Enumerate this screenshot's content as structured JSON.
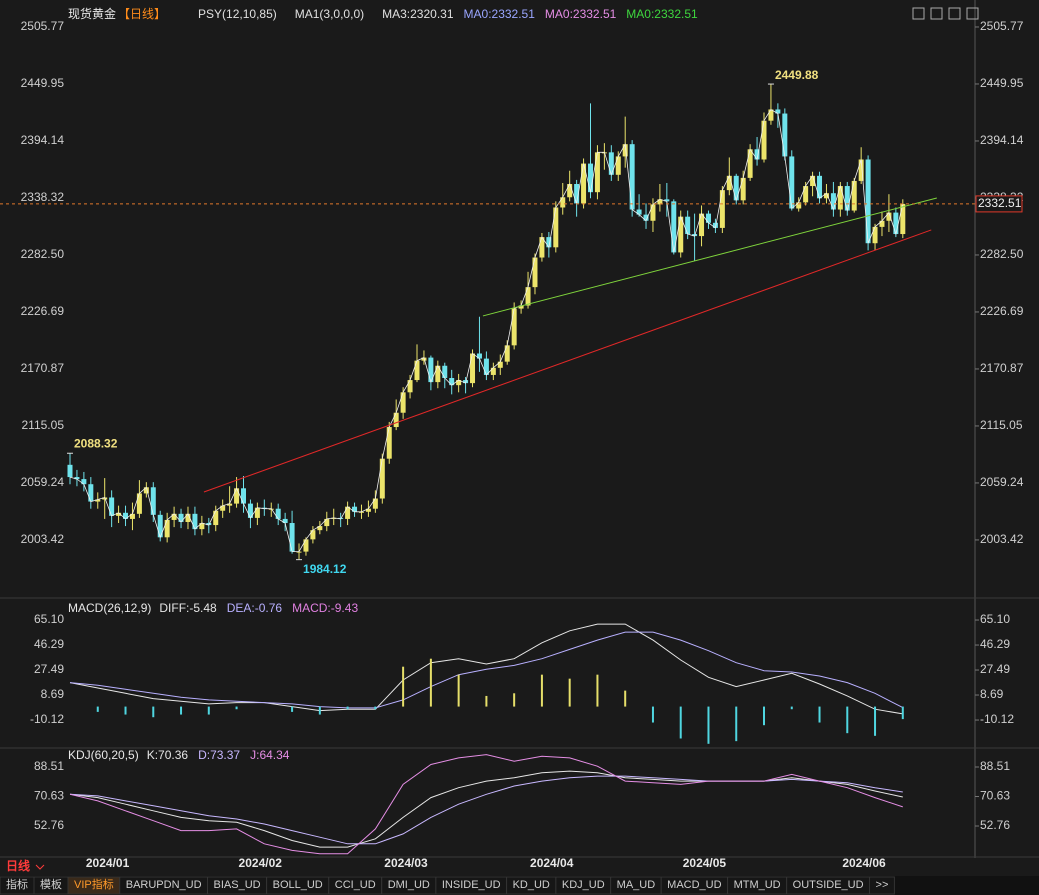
{
  "chart_data": [
    {
      "type": "candlestick",
      "title": "现货黄金",
      "subtitle": "【日线】",
      "legend": [
        {
          "name": "PSY(12,10,85)",
          "color": "#e0e0e0"
        },
        {
          "name": "MA1(3,0,0,0)",
          "color": "#e0e0e0"
        },
        {
          "name": "MA3:2320.31",
          "color": "#e0e0e0"
        },
        {
          "name": "MA0:2332.51",
          "color": "#9aa6ff"
        },
        {
          "name": "MA0:2332.51",
          "color": "#e58ee5"
        },
        {
          "name": "MA0:2332.51",
          "color": "#3ed63e"
        }
      ],
      "categories": [
        null,
        null,
        "2024/01",
        null,
        null,
        null,
        null,
        null,
        null,
        null,
        null,
        null,
        null,
        null,
        null,
        null,
        null,
        null,
        null,
        null,
        null,
        null,
        null,
        null,
        "2024/02",
        null,
        null,
        null,
        null,
        null,
        null,
        null,
        null,
        null,
        null,
        null,
        null,
        null,
        null,
        null,
        null,
        null,
        null,
        null,
        null,
        "2024/03",
        null,
        null,
        null,
        null,
        null,
        null,
        null,
        null,
        null,
        null,
        null,
        null,
        null,
        null,
        null,
        null,
        null,
        null,
        null,
        null,
        "2024/04",
        null,
        null,
        null,
        null,
        null,
        null,
        null,
        null,
        null,
        null,
        null,
        null,
        null,
        null,
        null,
        null,
        null,
        null,
        null,
        null,
        null,
        "2024/05",
        null,
        null,
        null,
        null,
        null,
        null,
        null,
        null,
        null,
        null,
        null,
        null,
        null,
        null,
        null,
        null,
        null,
        null,
        null,
        null,
        null,
        null,
        "2024/06",
        null,
        null,
        null,
        null,
        null,
        null,
        null,
        null,
        null
      ],
      "open": [
        2077,
        2065,
        2063,
        2058,
        2041,
        2043,
        2045,
        2027,
        2030,
        2024,
        2029,
        2049,
        2055,
        2028,
        2006,
        2023,
        2029,
        2021,
        2029,
        2014,
        2020,
        2018,
        2032,
        2037,
        2039,
        2054,
        2039,
        2025,
        2035,
        2034,
        2034,
        2024,
        2020,
        1992,
        1992,
        2004,
        2013,
        2017,
        2024,
        2025,
        2024,
        2036,
        2031,
        2031,
        2034,
        2044,
        2083,
        2114,
        2128,
        2148,
        2160,
        2179,
        2182,
        2158,
        2174,
        2162,
        2155,
        2160,
        2157,
        2186,
        2181,
        2165,
        2172,
        2178,
        2194,
        2230,
        2233,
        2251,
        2280,
        2300,
        2290,
        2329,
        2339,
        2352,
        2333,
        2372,
        2344,
        2383,
        2383,
        2361,
        2379,
        2391,
        2327,
        2322,
        2316,
        2332,
        2337,
        2335,
        2285,
        2320,
        2303,
        2301,
        2323,
        2314,
        2309,
        2346,
        2360,
        2336,
        2358,
        2386,
        2376,
        2414,
        2425,
        2421,
        2379,
        2328,
        2334,
        2350,
        2360,
        2338,
        2343,
        2327,
        2350,
        2326,
        2355,
        2376,
        2294,
        2310,
        2316,
        2324,
        2303
      ],
      "high": [
        2088.32,
        2072,
        2070,
        2065,
        2050,
        2064,
        2052,
        2037,
        2037,
        2040,
        2062,
        2060,
        2060,
        2032,
        2030,
        2036,
        2034,
        2036,
        2036,
        2027,
        2025,
        2037,
        2043,
        2056,
        2065,
        2066,
        2043,
        2040,
        2043,
        2040,
        2039,
        2030,
        2032,
        2000,
        2006,
        2017,
        2022,
        2031,
        2034,
        2030,
        2041,
        2040,
        2038,
        2042,
        2052,
        2088,
        2119,
        2141,
        2153,
        2165,
        2195,
        2189,
        2184,
        2179,
        2177,
        2170,
        2166,
        2163,
        2190,
        2222,
        2188,
        2177,
        2185,
        2199,
        2236,
        2238,
        2266,
        2284,
        2304,
        2305,
        2335,
        2353,
        2365,
        2356,
        2377,
        2431,
        2390,
        2392,
        2390,
        2384,
        2418,
        2395,
        2342,
        2333,
        2338,
        2352,
        2353,
        2337,
        2326,
        2326,
        2323,
        2331,
        2326,
        2318,
        2350,
        2378,
        2362,
        2365,
        2391,
        2398,
        2422,
        2449.88,
        2431,
        2426,
        2385,
        2339,
        2354,
        2364,
        2364,
        2352,
        2354,
        2354,
        2354,
        2358,
        2388,
        2380,
        2313,
        2325,
        2342,
        2329,
        2337
      ],
      "low": [
        2058,
        2056,
        2051,
        2034,
        2034,
        2024,
        2016,
        2020,
        2017,
        2013,
        2025,
        2045,
        2021,
        2002,
        2001,
        2016,
        2015,
        2014,
        2008,
        2008,
        2010,
        2012,
        2025,
        2030,
        2035,
        2030,
        2015,
        2018,
        2027,
        2026,
        2018,
        2012,
        1990,
        1984.12,
        1988,
        2000,
        2009,
        2012,
        2018,
        2016,
        2018,
        2026,
        2024,
        2026,
        2030,
        2039,
        2078,
        2111,
        2122,
        2142,
        2158,
        2175,
        2150,
        2152,
        2152,
        2146,
        2148,
        2147,
        2153,
        2168,
        2160,
        2160,
        2165,
        2175,
        2190,
        2225,
        2230,
        2244,
        2276,
        2280,
        2285,
        2322,
        2335,
        2320,
        2328,
        2338,
        2337,
        2366,
        2355,
        2355,
        2368,
        2320,
        2320,
        2308,
        2305,
        2325,
        2320,
        2283,
        2280,
        2298,
        2277,
        2291,
        2308,
        2304,
        2304,
        2341,
        2332,
        2332,
        2355,
        2370,
        2373,
        2410,
        2407,
        2375,
        2326,
        2325,
        2331,
        2340,
        2333,
        2333,
        2320,
        2320,
        2321,
        2324,
        2352,
        2287,
        2287,
        2301,
        2305,
        2300,
        2299
      ],
      "close": [
        2065,
        2063,
        2058,
        2041,
        2043,
        2045,
        2027,
        2030,
        2024,
        2029,
        2049,
        2055,
        2028,
        2006,
        2023,
        2029,
        2021,
        2029,
        2014,
        2020,
        2018,
        2032,
        2037,
        2039,
        2054,
        2039,
        2025,
        2035,
        2034,
        2034,
        2024,
        2020,
        1992,
        1992,
        2004,
        2013,
        2017,
        2024,
        2025,
        2024,
        2036,
        2031,
        2031,
        2034,
        2044,
        2083,
        2114,
        2128,
        2148,
        2160,
        2179,
        2182,
        2158,
        2174,
        2162,
        2155,
        2160,
        2157,
        2186,
        2181,
        2165,
        2172,
        2178,
        2194,
        2230,
        2233,
        2251,
        2280,
        2300,
        2290,
        2329,
        2339,
        2352,
        2333,
        2372,
        2344,
        2383,
        2383,
        2361,
        2379,
        2391,
        2327,
        2322,
        2316,
        2332,
        2337,
        2335,
        2285,
        2320,
        2303,
        2301,
        2323,
        2314,
        2309,
        2346,
        2360,
        2336,
        2358,
        2386,
        2376,
        2414,
        2425,
        2421,
        2379,
        2328,
        2334,
        2350,
        2360,
        2338,
        2343,
        2327,
        2350,
        2326,
        2355,
        2376,
        2294,
        2310,
        2316,
        2324,
        2303,
        2332.51
      ],
      "up_color": "#ece46a",
      "down_color": "#6fe3ec",
      "line_color": "#f0f0f0",
      "last_price_color": "#e0782a",
      "trendlines": [
        {
          "color": "#7fd43c",
          "x": [
            59.5,
            124.9
          ],
          "y": [
            2222.8,
            2338.3
          ]
        },
        {
          "color": "#e02828",
          "x": [
            19.3,
            124.1
          ],
          "y": [
            2050.4,
            2307.0
          ]
        }
      ],
      "ylim": [
        1949.5,
        2522.4
      ],
      "yticks": [
        2505.77,
        2449.95,
        2394.14,
        2338.32,
        {
          "value": 2282.5,
          "label": "2282.50"
        },
        2226.69,
        2170.87,
        2115.05,
        2059.24,
        2003.42
      ]
    },
    {
      "type": "macd",
      "title": "MACD(26,12,9)",
      "x": [
        0,
        4,
        8,
        12,
        16,
        20,
        24,
        28,
        32,
        36,
        40,
        44,
        48,
        52,
        56,
        60,
        64,
        68,
        72,
        76,
        80,
        84,
        88,
        92,
        96,
        100,
        104,
        108,
        112,
        116,
        120
      ],
      "series": [
        {
          "name": "DIFF:-5.48",
          "color": "#e6e6e6",
          "values": [
            18,
            14,
            10,
            6,
            4,
            2,
            3,
            3,
            0,
            -3,
            -2,
            -2,
            20,
            33,
            36,
            32,
            36,
            48,
            57,
            62,
            62,
            50,
            35,
            22,
            15,
            20,
            25,
            17,
            8,
            -2,
            -5.48
          ]
        },
        {
          "name": "DEA:-0.76",
          "color": "#b8b0ff",
          "values": [
            18,
            16,
            13,
            10,
            7,
            5,
            4,
            3,
            2,
            0,
            -1,
            -1,
            5,
            15,
            24,
            28,
            31,
            36,
            43,
            50,
            56,
            56,
            50,
            42,
            33,
            27,
            26,
            23,
            18,
            10,
            -0.76
          ]
        },
        {
          "name": "MACD:-9.43",
          "color": "#e080e0",
          "type": "bar",
          "colors": [
            "#e6df6a",
            "#4fd6e0"
          ],
          "values": [
            0,
            -4,
            -6,
            -8,
            -6,
            -6,
            -2,
            0,
            -4,
            -6,
            -2,
            -2,
            30,
            36,
            24,
            8,
            10,
            24,
            21,
            24,
            12,
            -12,
            -24,
            -28,
            -26,
            -14,
            -2,
            -12,
            -20,
            -22,
            -9.43
          ]
        }
      ],
      "ylim": [
        -28.9,
        76.4
      ],
      "yticks": [
        {
          "value": 65.1,
          "label": "65.10"
        },
        46.29,
        27.49,
        8.69,
        -10.12
      ]
    },
    {
      "type": "line",
      "title": "KDJ(60,20,5)",
      "x": [
        0,
        4,
        8,
        12,
        16,
        20,
        24,
        28,
        32,
        36,
        40,
        44,
        48,
        52,
        56,
        60,
        64,
        68,
        72,
        76,
        80,
        84,
        88,
        92,
        96,
        100,
        104,
        108,
        112,
        116,
        120
      ],
      "series": [
        {
          "name": "K:70.36",
          "color": "#e6e6e6",
          "values": [
            72,
            70,
            66,
            62,
            58,
            56,
            55,
            50,
            44,
            40,
            40,
            45,
            58,
            70,
            76,
            80,
            82,
            85,
            86,
            85,
            82,
            81,
            80,
            80,
            80,
            80,
            82,
            80,
            78,
            74,
            70.36
          ]
        },
        {
          "name": "D:73.37",
          "color": "#c8b8ff",
          "values": [
            72,
            71,
            68,
            65,
            62,
            59,
            57,
            54,
            50,
            46,
            42,
            42,
            48,
            58,
            66,
            72,
            77,
            80,
            82,
            83,
            83,
            82,
            81,
            80,
            80,
            80,
            81,
            80,
            79,
            76,
            73.37
          ]
        },
        {
          "name": "J:64.34",
          "color": "#e58ee5",
          "values": [
            72,
            68,
            62,
            56,
            50,
            50,
            51,
            42,
            38,
            36,
            36,
            51,
            78,
            90,
            94,
            96,
            92,
            95,
            94,
            89,
            80,
            79,
            78,
            80,
            80,
            80,
            84,
            80,
            76,
            70,
            64.34
          ]
        }
      ],
      "ylim": [
        35.2,
        97.6
      ],
      "yticks": [
        88.51,
        70.63,
        52.76
      ]
    }
  ],
  "toolbar": {
    "period": "日线",
    "tabs": [
      "指标",
      "模板",
      "VIP指标",
      "BARUPDN_UD",
      "BIAS_UD",
      "BOLL_UD",
      "CCI_UD",
      "DMI_UD",
      "INSIDE_UD",
      "KD_UD",
      "KDJ_UD",
      "MA_UD",
      "MACD_UD",
      "MTM_UD",
      "OUTSIDE_UD",
      ">>"
    ],
    "active": 2
  }
}
